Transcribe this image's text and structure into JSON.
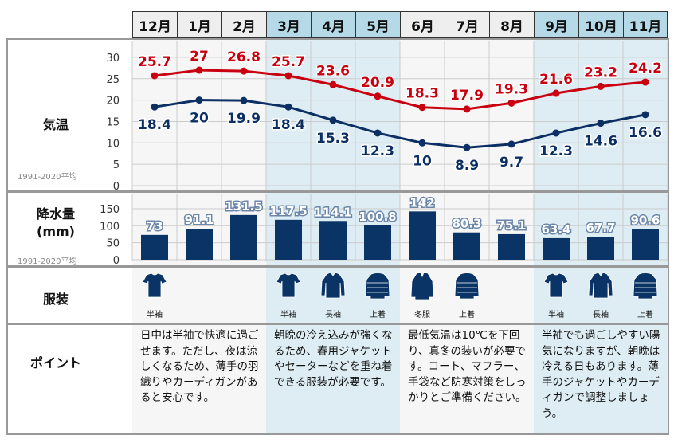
{
  "months": [
    "12月",
    "1月",
    "2月",
    "3月",
    "4月",
    "5月",
    "6月",
    "7月",
    "8月",
    "9月",
    "10月",
    "11月"
  ],
  "season_colors": {
    "gray_header": "#eeeeee",
    "gray_body": "#f6f6f6",
    "blue_header": "#b5d9e6",
    "blue_body": "#deedf3"
  },
  "row_labels": {
    "temp": "気温",
    "precip": "降水量\n(mm)",
    "clothing": "服装",
    "points": "ポイント"
  },
  "period_note": "1991-2020平均",
  "chart_data": [
    {
      "type": "line",
      "categories": [
        "12月",
        "1月",
        "2月",
        "3月",
        "4月",
        "5月",
        "6月",
        "7月",
        "8月",
        "9月",
        "10月",
        "11月"
      ],
      "ylim": [
        0,
        30
      ],
      "yticks": [
        0,
        5,
        10,
        15,
        20,
        25,
        30
      ],
      "grid": true,
      "series": [
        {
          "values": [
            25.7,
            27,
            26.8,
            25.7,
            23.6,
            20.9,
            18.3,
            17.9,
            19.3,
            21.6,
            23.2,
            24.2
          ],
          "color": "#c8000f"
        },
        {
          "values": [
            18.4,
            20,
            19.9,
            18.4,
            15.3,
            12.3,
            10,
            8.9,
            9.7,
            12.3,
            14.6,
            16.6
          ],
          "color": "#0b2f63"
        }
      ],
      "labels": {
        "max": [
          "25.7",
          "27",
          "26.8",
          "25.7",
          "23.6",
          "20.9",
          "18.3",
          "17.9",
          "19.3",
          "21.6",
          "23.2",
          "24.2"
        ],
        "min": [
          "18.4",
          "20",
          "19.9",
          "18.4",
          "15.3",
          "12.3",
          "10",
          "8.9",
          "9.7",
          "12.3",
          "14.6",
          "16.6"
        ]
      }
    },
    {
      "type": "bar",
      "categories": [
        "12月",
        "1月",
        "2月",
        "3月",
        "4月",
        "5月",
        "6月",
        "7月",
        "8月",
        "9月",
        "10月",
        "11月"
      ],
      "ylim": [
        0,
        150
      ],
      "yticks": [
        0,
        50,
        100,
        150
      ],
      "grid": true,
      "values": [
        73,
        91.1,
        131.5,
        117.5,
        114.1,
        100.8,
        142,
        80.3,
        75.1,
        63.4,
        67.7,
        90.6
      ],
      "labels": [
        "73",
        "91.1",
        "131.5",
        "117.5",
        "114.1",
        "100.8",
        "142",
        "80.3",
        "75.1",
        "63.4",
        "67.7",
        "90.6"
      ],
      "color": "#0b3466"
    }
  ],
  "clothing": [
    {
      "col": 0,
      "icon": "tshirt-icon",
      "label": "半袖"
    },
    {
      "col": 3,
      "icon": "tshirt-icon",
      "label": "半袖"
    },
    {
      "col": 4,
      "icon": "long-sleeve-shirt-icon",
      "label": "長袖"
    },
    {
      "col": 5,
      "icon": "jacket-icon",
      "label": "上着"
    },
    {
      "col": 6,
      "icon": "winter-coat-icon",
      "label": "冬服"
    },
    {
      "col": 7,
      "icon": "jacket-icon",
      "label": "上着"
    },
    {
      "col": 9,
      "icon": "tshirt-icon",
      "label": "半袖"
    },
    {
      "col": 10,
      "icon": "long-sleeve-shirt-icon",
      "label": "長袖"
    },
    {
      "col": 11,
      "icon": "jacket-icon",
      "label": "上着"
    }
  ],
  "points": [
    "日中は半袖で快適に過ごせます。ただし、夜は涼しくなるため、薄手の羽織りやカーディガンがあると安心です。",
    "朝晩の冷え込みが強くなるため、春用ジャケットやセーターなどを重ね着できる服装が必要です。",
    "最低気温は10℃を下回り、真冬の装いが必要です。コート、マフラー、手袋など防寒対策をしっかりとご準備ください。",
    "半袖でも過ごしやすい陽気になりますが、朝晩は冷える日もあります。薄手のジャケットやカーディガンで調整しましょう。"
  ]
}
